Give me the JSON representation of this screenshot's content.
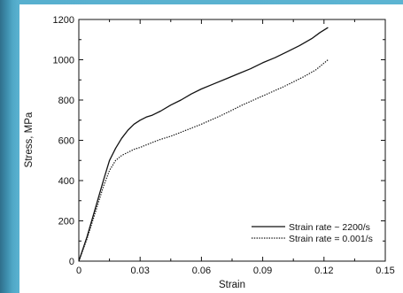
{
  "colors": {
    "background": "#5cb4d2",
    "panel": "#ffffff",
    "line": "#111111"
  },
  "chart_data": {
    "type": "line",
    "title": "",
    "xlabel": "Strain",
    "ylabel": "Stress, MPa",
    "xlim": [
      0,
      0.15
    ],
    "ylim": [
      0,
      1200
    ],
    "xticks": [
      "0",
      "0.03",
      "0.06",
      "0.09",
      "0.12",
      "0.15"
    ],
    "yticks": [
      "0",
      "200",
      "400",
      "600",
      "800",
      "1000",
      "1200"
    ],
    "grid": false,
    "legend_position": "bottom-right",
    "series": [
      {
        "name": "Strain rate ~ 2200/s",
        "style": "solid",
        "x": [
          0,
          0.004,
          0.008,
          0.012,
          0.015,
          0.018,
          0.021,
          0.024,
          0.027,
          0.03,
          0.033,
          0.036,
          0.04,
          0.045,
          0.05,
          0.055,
          0.06,
          0.066,
          0.072,
          0.078,
          0.084,
          0.09,
          0.096,
          0.102,
          0.108,
          0.114,
          0.118,
          0.122
        ],
        "y": [
          0,
          120,
          260,
          400,
          500,
          560,
          610,
          650,
          680,
          700,
          715,
          725,
          745,
          775,
          800,
          830,
          855,
          880,
          905,
          930,
          955,
          985,
          1010,
          1040,
          1070,
          1105,
          1135,
          1160
        ]
      },
      {
        "name": "Strain rate = 0.001/s",
        "style": "dotted",
        "x": [
          0,
          0.004,
          0.008,
          0.012,
          0.015,
          0.018,
          0.021,
          0.024,
          0.027,
          0.03,
          0.035,
          0.04,
          0.045,
          0.05,
          0.06,
          0.07,
          0.08,
          0.09,
          0.1,
          0.11,
          0.116,
          0.122
        ],
        "y": [
          0,
          110,
          240,
          370,
          450,
          500,
          525,
          540,
          555,
          565,
          585,
          605,
          620,
          640,
          680,
          725,
          775,
          820,
          865,
          915,
          950,
          1000
        ]
      }
    ]
  }
}
